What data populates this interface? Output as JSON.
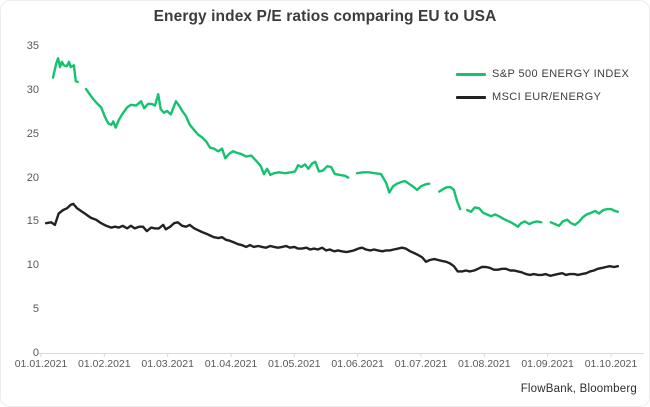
{
  "card": {
    "source": "FlowBank, Bloomberg"
  },
  "colors": {
    "sp500_green": "#15c26e",
    "msci_black": "#222222",
    "axis_line": "#d9d9d9",
    "tick_text": "#595959",
    "title_text": "#3c3c3c"
  },
  "chart_data": {
    "type": "line",
    "title": "Energy index P/E ratios comparing EU to USA",
    "xlabel": "",
    "ylabel": "",
    "grid": false,
    "legend_position": "top-right",
    "ylim": [
      0,
      35
    ],
    "y_ticks": [
      0,
      5,
      10,
      15,
      20,
      25,
      30,
      35
    ],
    "x_tick_labels": [
      "01.01.2021",
      "01.02.2021",
      "01.03.2021",
      "01.04.2021",
      "01.05.2021",
      "01.06.2021",
      "01.07.2021",
      "01.08.2021",
      "01.09.2021",
      "01.10.2021"
    ],
    "x_axis_note": "x values below are months since 01.01.2021 (0 = Jan 1, 9 = Oct 1); null = gap in data",
    "series": [
      {
        "name": "S&P 500 ENERGY INDEX",
        "color": "#15c26e",
        "points": [
          [
            0.19,
            31.4
          ],
          [
            0.24,
            33.0
          ],
          [
            0.27,
            33.6
          ],
          [
            0.3,
            32.6
          ],
          [
            0.33,
            33.2
          ],
          [
            0.36,
            32.8
          ],
          [
            0.41,
            32.7
          ],
          [
            0.44,
            33.2
          ],
          [
            0.47,
            32.6
          ],
          [
            0.52,
            32.8
          ],
          [
            0.55,
            31.0
          ],
          [
            0.58,
            30.9
          ],
          null,
          [
            0.71,
            30.1
          ],
          [
            0.76,
            29.6
          ],
          [
            0.82,
            29.0
          ],
          [
            0.88,
            28.5
          ],
          [
            0.95,
            28.0
          ],
          [
            1.01,
            26.9
          ],
          [
            1.06,
            26.2
          ],
          [
            1.11,
            26.0
          ],
          [
            1.14,
            26.4
          ],
          [
            1.18,
            25.7
          ],
          [
            1.23,
            26.6
          ],
          [
            1.29,
            27.3
          ],
          [
            1.36,
            28.0
          ],
          [
            1.42,
            28.3
          ],
          [
            1.5,
            28.2
          ],
          [
            1.58,
            28.7
          ],
          [
            1.63,
            27.9
          ],
          [
            1.69,
            28.4
          ],
          [
            1.75,
            28.4
          ],
          [
            1.8,
            28.2
          ],
          [
            1.85,
            29.5
          ],
          [
            1.89,
            27.8
          ],
          [
            1.94,
            27.4
          ],
          [
            1.99,
            27.6
          ],
          [
            2.05,
            27.2
          ],
          [
            2.13,
            28.7
          ],
          [
            2.18,
            28.2
          ],
          [
            2.23,
            27.6
          ],
          [
            2.29,
            27.0
          ],
          [
            2.35,
            26.0
          ],
          [
            2.42,
            25.4
          ],
          [
            2.48,
            24.9
          ],
          [
            2.54,
            24.6
          ],
          [
            2.61,
            24.1
          ],
          [
            2.67,
            23.4
          ],
          [
            2.73,
            23.3
          ],
          [
            2.8,
            23.0
          ],
          [
            2.86,
            23.3
          ],
          [
            2.91,
            22.2
          ],
          [
            2.97,
            22.7
          ],
          [
            3.03,
            23.0
          ],
          [
            3.1,
            22.8
          ],
          [
            3.16,
            22.7
          ],
          [
            3.24,
            22.4
          ],
          [
            3.32,
            22.5
          ],
          [
            3.4,
            21.9
          ],
          [
            3.47,
            21.3
          ],
          [
            3.52,
            20.4
          ],
          [
            3.57,
            21.0
          ],
          [
            3.62,
            20.3
          ],
          [
            3.68,
            20.5
          ],
          [
            3.76,
            20.6
          ],
          [
            3.85,
            20.5
          ],
          [
            3.95,
            20.6
          ],
          [
            4.01,
            20.7
          ],
          [
            4.06,
            21.4
          ],
          [
            4.11,
            21.2
          ],
          [
            4.17,
            21.5
          ],
          [
            4.22,
            21.0
          ],
          [
            4.28,
            21.6
          ],
          [
            4.33,
            21.8
          ],
          [
            4.39,
            20.7
          ],
          [
            4.45,
            20.8
          ],
          [
            4.52,
            21.3
          ],
          [
            4.58,
            21.2
          ],
          [
            4.64,
            20.4
          ],
          [
            4.72,
            20.3
          ],
          [
            4.8,
            20.2
          ],
          [
            4.85,
            20.0
          ],
          null,
          [
            4.99,
            20.5
          ],
          [
            5.09,
            20.6
          ],
          [
            5.18,
            20.6
          ],
          [
            5.27,
            20.5
          ],
          [
            5.37,
            20.4
          ],
          [
            5.45,
            19.4
          ],
          [
            5.5,
            18.3
          ],
          [
            5.56,
            19.0
          ],
          [
            5.62,
            19.3
          ],
          [
            5.69,
            19.5
          ],
          [
            5.75,
            19.6
          ],
          [
            5.81,
            19.3
          ],
          [
            5.87,
            19.0
          ],
          [
            5.94,
            18.6
          ],
          [
            6.0,
            19.0
          ],
          [
            6.06,
            19.2
          ],
          [
            6.13,
            19.3
          ],
          null,
          [
            6.29,
            18.4
          ],
          [
            6.35,
            18.7
          ],
          [
            6.41,
            18.9
          ],
          [
            6.47,
            18.9
          ],
          [
            6.52,
            18.6
          ],
          [
            6.57,
            17.3
          ],
          [
            6.62,
            16.4
          ],
          null,
          [
            6.73,
            16.3
          ],
          [
            6.79,
            16.1
          ],
          [
            6.85,
            16.6
          ],
          [
            6.92,
            16.5
          ],
          [
            6.98,
            16.0
          ],
          [
            7.04,
            15.8
          ],
          [
            7.11,
            15.6
          ],
          [
            7.17,
            15.8
          ],
          [
            7.23,
            15.6
          ],
          [
            7.3,
            15.3
          ],
          [
            7.36,
            15.1
          ],
          [
            7.42,
            14.9
          ],
          [
            7.49,
            14.6
          ],
          [
            7.53,
            14.4
          ],
          [
            7.58,
            14.8
          ],
          [
            7.64,
            15.0
          ],
          [
            7.71,
            14.7
          ],
          [
            7.77,
            14.9
          ],
          [
            7.83,
            15.0
          ],
          [
            7.9,
            14.9
          ],
          null,
          [
            8.05,
            14.9
          ],
          [
            8.12,
            14.7
          ],
          [
            8.18,
            14.5
          ],
          [
            8.24,
            15.0
          ],
          [
            8.31,
            15.2
          ],
          [
            8.37,
            14.8
          ],
          [
            8.43,
            14.6
          ],
          [
            8.5,
            15.0
          ],
          [
            8.56,
            15.5
          ],
          [
            8.62,
            15.8
          ],
          [
            8.69,
            16.0
          ],
          [
            8.75,
            16.2
          ],
          [
            8.81,
            15.9
          ],
          [
            8.88,
            16.3
          ],
          [
            8.94,
            16.4
          ],
          [
            9.0,
            16.4
          ],
          [
            9.06,
            16.2
          ],
          [
            9.11,
            16.1
          ]
        ]
      },
      {
        "name": "MSCI EUR/ENERGY",
        "color": "#222222",
        "points": [
          [
            0.08,
            14.8
          ],
          [
            0.16,
            14.9
          ],
          [
            0.22,
            14.6
          ],
          [
            0.28,
            15.9
          ],
          [
            0.35,
            16.3
          ],
          [
            0.41,
            16.5
          ],
          [
            0.47,
            16.9
          ],
          [
            0.51,
            17.0
          ],
          [
            0.57,
            16.5
          ],
          [
            0.63,
            16.2
          ],
          [
            0.71,
            15.8
          ],
          [
            0.79,
            15.4
          ],
          [
            0.87,
            15.2
          ],
          [
            0.95,
            14.8
          ],
          [
            1.03,
            14.5
          ],
          [
            1.11,
            14.3
          ],
          [
            1.17,
            14.4
          ],
          [
            1.23,
            14.3
          ],
          [
            1.29,
            14.5
          ],
          [
            1.36,
            14.2
          ],
          [
            1.42,
            14.5
          ],
          [
            1.48,
            14.2
          ],
          [
            1.55,
            14.4
          ],
          [
            1.61,
            14.4
          ],
          [
            1.67,
            13.9
          ],
          [
            1.74,
            14.3
          ],
          [
            1.8,
            14.2
          ],
          [
            1.86,
            14.2
          ],
          [
            1.93,
            14.6
          ],
          [
            1.97,
            14.1
          ],
          [
            2.04,
            14.4
          ],
          [
            2.1,
            14.8
          ],
          [
            2.16,
            14.9
          ],
          [
            2.23,
            14.5
          ],
          [
            2.29,
            14.4
          ],
          [
            2.35,
            14.6
          ],
          [
            2.42,
            14.2
          ],
          [
            2.48,
            14.0
          ],
          [
            2.54,
            13.8
          ],
          [
            2.61,
            13.6
          ],
          [
            2.67,
            13.4
          ],
          [
            2.73,
            13.2
          ],
          [
            2.8,
            13.1
          ],
          [
            2.86,
            13.2
          ],
          [
            2.92,
            12.9
          ],
          [
            2.98,
            12.8
          ],
          [
            3.05,
            12.6
          ],
          [
            3.11,
            12.4
          ],
          [
            3.17,
            12.3
          ],
          [
            3.24,
            12.1
          ],
          [
            3.3,
            12.3
          ],
          [
            3.36,
            12.1
          ],
          [
            3.43,
            12.2
          ],
          [
            3.49,
            12.1
          ],
          [
            3.55,
            12.0
          ],
          [
            3.62,
            12.2
          ],
          [
            3.68,
            12.1
          ],
          [
            3.74,
            12.0
          ],
          [
            3.81,
            12.1
          ],
          [
            3.87,
            12.2
          ],
          [
            3.93,
            12.0
          ],
          [
            4.0,
            12.1
          ],
          [
            4.06,
            11.9
          ],
          [
            4.12,
            11.9
          ],
          [
            4.19,
            12.0
          ],
          [
            4.25,
            11.8
          ],
          [
            4.31,
            11.9
          ],
          [
            4.37,
            11.8
          ],
          [
            4.44,
            12.0
          ],
          [
            4.5,
            11.7
          ],
          [
            4.56,
            11.8
          ],
          [
            4.63,
            11.6
          ],
          [
            4.69,
            11.7
          ],
          [
            4.75,
            11.6
          ],
          [
            4.82,
            11.5
          ],
          [
            4.88,
            11.6
          ],
          [
            4.94,
            11.7
          ],
          [
            5.01,
            11.9
          ],
          [
            5.07,
            12.0
          ],
          [
            5.13,
            11.8
          ],
          [
            5.2,
            11.7
          ],
          [
            5.26,
            11.8
          ],
          [
            5.32,
            11.7
          ],
          [
            5.39,
            11.6
          ],
          [
            5.45,
            11.7
          ],
          [
            5.51,
            11.7
          ],
          [
            5.57,
            11.8
          ],
          [
            5.64,
            11.9
          ],
          [
            5.7,
            12.0
          ],
          [
            5.76,
            11.9
          ],
          [
            5.83,
            11.6
          ],
          [
            5.89,
            11.4
          ],
          [
            5.95,
            11.2
          ],
          [
            6.02,
            10.9
          ],
          [
            6.08,
            10.4
          ],
          [
            6.14,
            10.6
          ],
          [
            6.21,
            10.7
          ],
          [
            6.27,
            10.6
          ],
          [
            6.33,
            10.5
          ],
          [
            6.4,
            10.4
          ],
          [
            6.46,
            10.2
          ],
          [
            6.52,
            9.9
          ],
          [
            6.58,
            9.3
          ],
          [
            6.65,
            9.3
          ],
          [
            6.71,
            9.4
          ],
          [
            6.77,
            9.3
          ],
          [
            6.84,
            9.4
          ],
          [
            6.9,
            9.6
          ],
          [
            6.96,
            9.8
          ],
          [
            7.03,
            9.8
          ],
          [
            7.09,
            9.7
          ],
          [
            7.15,
            9.5
          ],
          [
            7.22,
            9.5
          ],
          [
            7.28,
            9.6
          ],
          [
            7.34,
            9.6
          ],
          [
            7.41,
            9.4
          ],
          [
            7.47,
            9.4
          ],
          [
            7.53,
            9.3
          ],
          [
            7.59,
            9.2
          ],
          [
            7.66,
            9.0
          ],
          [
            7.72,
            8.9
          ],
          [
            7.78,
            9.0
          ],
          [
            7.85,
            8.9
          ],
          [
            7.91,
            8.9
          ],
          [
            7.97,
            9.0
          ],
          [
            8.04,
            8.8
          ],
          [
            8.1,
            8.9
          ],
          [
            8.16,
            9.0
          ],
          [
            8.23,
            9.1
          ],
          [
            8.29,
            8.9
          ],
          [
            8.35,
            9.0
          ],
          [
            8.42,
            9.0
          ],
          [
            8.48,
            8.9
          ],
          [
            8.54,
            9.0
          ],
          [
            8.61,
            9.1
          ],
          [
            8.67,
            9.3
          ],
          [
            8.73,
            9.4
          ],
          [
            8.79,
            9.6
          ],
          [
            8.86,
            9.7
          ],
          [
            8.92,
            9.8
          ],
          [
            8.98,
            9.9
          ],
          [
            9.05,
            9.8
          ],
          [
            9.11,
            9.9
          ]
        ]
      }
    ]
  }
}
